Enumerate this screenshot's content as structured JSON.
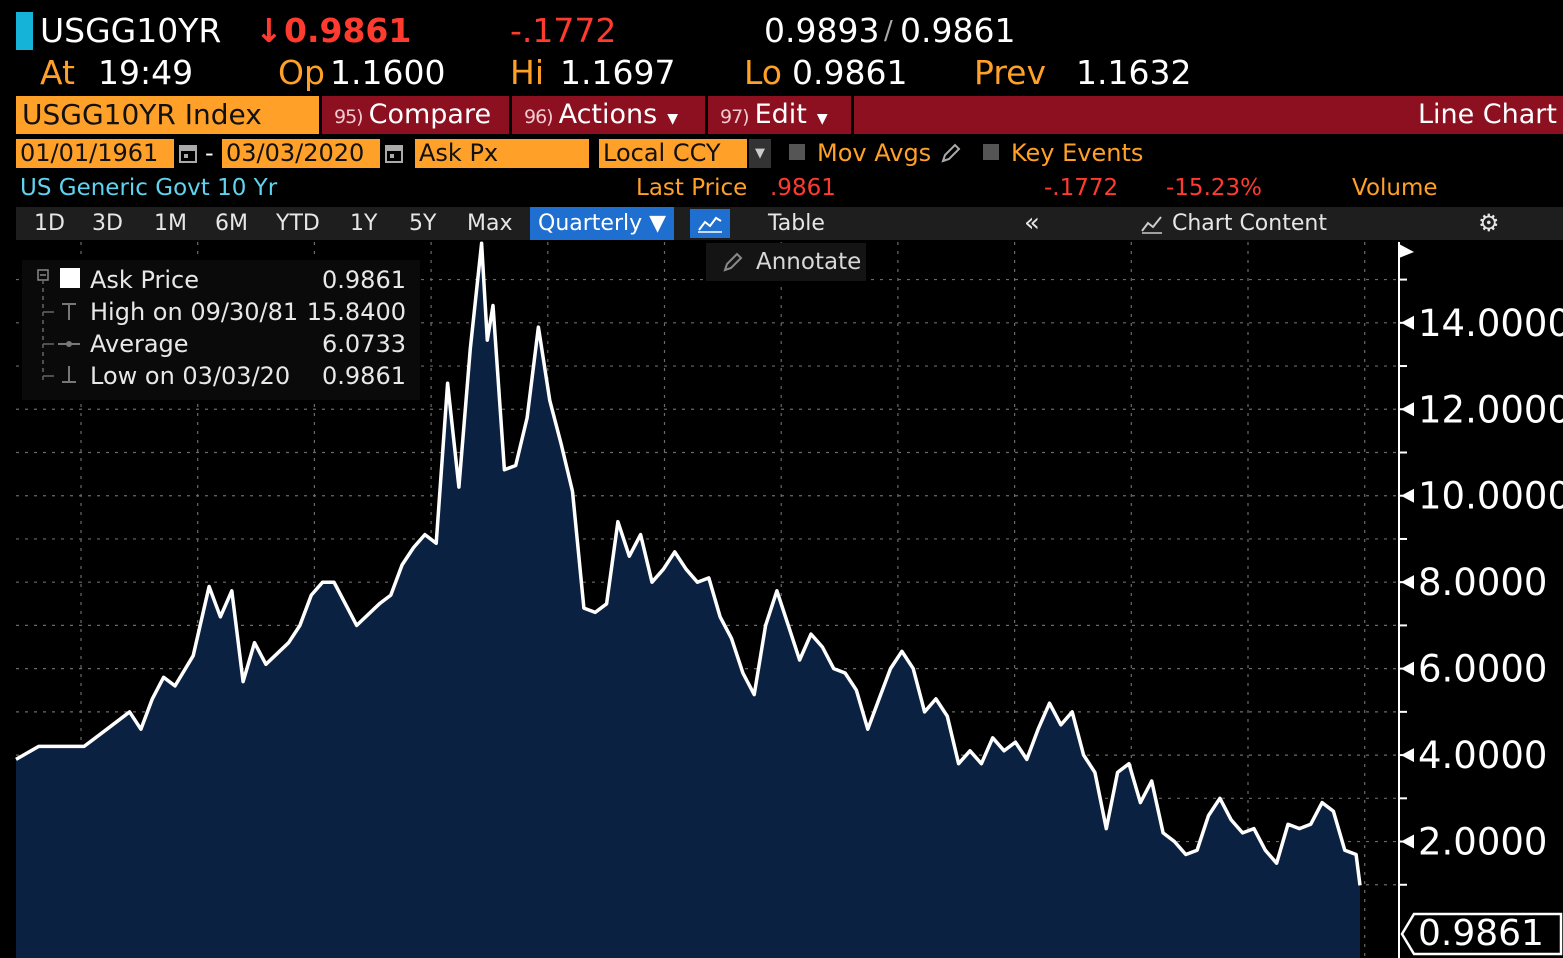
{
  "header": {
    "ticker": "USGG10YR",
    "arrow": "↓",
    "last": "0.9861",
    "change": "-.1772",
    "bid": "0.9893",
    "slash": "/",
    "ask": "0.9861",
    "at_label": "At",
    "time": "19:49",
    "op_label": "Op",
    "open": "1.1600",
    "hi_label": "Hi",
    "high": "1.1697",
    "lo_label": "Lo",
    "low": "0.9861",
    "prev_label": "Prev",
    "prev": "1.1632"
  },
  "toolbar": {
    "index": "USGG10YR Index",
    "compare_num": "95)",
    "compare": "Compare",
    "actions_num": "96)",
    "actions": "Actions",
    "edit_num": "97)",
    "edit": "Edit",
    "chart_type": "Line Chart"
  },
  "settings": {
    "start_date": "01/01/1961",
    "dash": "-",
    "end_date": "03/03/2020",
    "field": "Ask Px",
    "currency": "Local CCY",
    "mov_avgs": "Mov Avgs",
    "key_events": "Key Events"
  },
  "info": {
    "security": "US Generic Govt 10 Yr",
    "last_price_label": "Last Price",
    "last_price": ".9861",
    "net_change": "-.1772",
    "pct_change": "-15.23%",
    "volume": "Volume"
  },
  "tabs": [
    "1D",
    "3D",
    "1M",
    "6M",
    "YTD",
    "1Y",
    "5Y",
    "Max"
  ],
  "period": "Quarterly ▼",
  "table_label": "Table",
  "collapse": "«",
  "chart_content": "Chart Content",
  "annotate": "Annotate",
  "legend": {
    "ask_price_label": "Ask Price",
    "ask_price": "0.9861",
    "high_label": "High on 09/30/81",
    "high": "15.8400",
    "average_label": "Average",
    "average": "6.0733",
    "low_label": "Low on 03/03/20",
    "low": "0.9861"
  },
  "colors": {
    "accent_orange": "#ffa028",
    "toolbar_red": "#8c1020",
    "change_red": "#ff3b30",
    "selected_blue": "#1f6fd0",
    "chart_fill": "#0b2141",
    "line": "#ffffff"
  },
  "chart_data": {
    "type": "area",
    "series": [
      {
        "name": "Ask Price",
        "x": [
          1961.0,
          1962.0,
          1963.0,
          1964.0,
          1965.0,
          1966.0,
          1966.5,
          1967.0,
          1967.5,
          1968.0,
          1968.8,
          1969.5,
          1970.0,
          1970.5,
          1971.0,
          1971.5,
          1972.0,
          1973.0,
          1973.5,
          1974.0,
          1974.5,
          1975.0,
          1976.0,
          1977.0,
          1977.5,
          1978.0,
          1978.5,
          1979.0,
          1979.5,
          1980.0,
          1980.5,
          1981.0,
          1981.5,
          1981.75,
          1982.0,
          1982.5,
          1983.0,
          1983.5,
          1984.0,
          1984.5,
          1985.0,
          1985.5,
          1986.0,
          1986.5,
          1987.0,
          1987.5,
          1988.0,
          1988.5,
          1989.0,
          1989.5,
          1990.0,
          1990.5,
          1991.0,
          1991.5,
          1992.0,
          1992.5,
          1993.0,
          1993.5,
          1994.0,
          1994.5,
          1995.0,
          1995.5,
          1996.0,
          1996.5,
          1997.0,
          1997.5,
          1998.0,
          1998.5,
          1999.0,
          1999.5,
          2000.0,
          2000.5,
          2001.0,
          2001.5,
          2002.0,
          2002.5,
          2003.0,
          2003.5,
          2004.0,
          2004.5,
          2005.0,
          2005.5,
          2006.0,
          2006.5,
          2007.0,
          2007.5,
          2008.0,
          2008.5,
          2009.0,
          2009.5,
          2010.0,
          2010.5,
          2011.0,
          2011.5,
          2012.0,
          2012.5,
          2013.0,
          2013.5,
          2014.0,
          2014.5,
          2015.0,
          2015.5,
          2016.0,
          2016.5,
          2017.0,
          2017.5,
          2018.0,
          2018.5,
          2019.0,
          2019.5,
          2020.0,
          2020.17
        ],
        "y": [
          3.9,
          4.2,
          4.2,
          4.2,
          4.6,
          5.0,
          4.6,
          5.3,
          5.8,
          5.6,
          6.3,
          7.9,
          7.2,
          7.8,
          5.7,
          6.6,
          6.1,
          6.6,
          7.0,
          7.7,
          8.0,
          8.0,
          7.0,
          7.5,
          7.7,
          8.4,
          8.8,
          9.1,
          8.9,
          12.6,
          10.2,
          13.4,
          15.84,
          13.6,
          14.4,
          10.6,
          10.7,
          11.8,
          13.9,
          12.2,
          11.2,
          10.1,
          7.4,
          7.3,
          7.5,
          9.4,
          8.6,
          9.1,
          8.0,
          8.3,
          8.7,
          8.3,
          8.0,
          8.1,
          7.2,
          6.7,
          5.9,
          5.4,
          7.0,
          7.8,
          7.0,
          6.2,
          6.8,
          6.5,
          6.0,
          5.9,
          5.5,
          4.6,
          5.3,
          6.0,
          6.4,
          6.0,
          5.0,
          5.3,
          4.9,
          3.8,
          4.1,
          3.8,
          4.4,
          4.1,
          4.3,
          3.9,
          4.6,
          5.2,
          4.7,
          5.0,
          4.0,
          3.6,
          2.3,
          3.6,
          3.8,
          2.9,
          3.4,
          2.2,
          2.0,
          1.7,
          1.8,
          2.6,
          3.0,
          2.5,
          2.2,
          2.3,
          1.8,
          1.5,
          2.4,
          2.3,
          2.4,
          2.9,
          2.7,
          1.8,
          1.7,
          0.9861
        ]
      }
    ],
    "yticks": [
      2.0,
      4.0,
      6.0,
      8.0,
      10.0,
      12.0,
      14.0
    ],
    "ytick_labels": [
      "2.0000",
      "4.0000",
      "6.0000",
      "8.0000",
      "10.0000",
      "12.0000",
      "14.0000"
    ],
    "last_label": "0.9861",
    "ylim": [
      0,
      15.8
    ],
    "xlim": [
      1961,
      2020.17
    ],
    "grid": true,
    "legend_position": "top-left"
  }
}
